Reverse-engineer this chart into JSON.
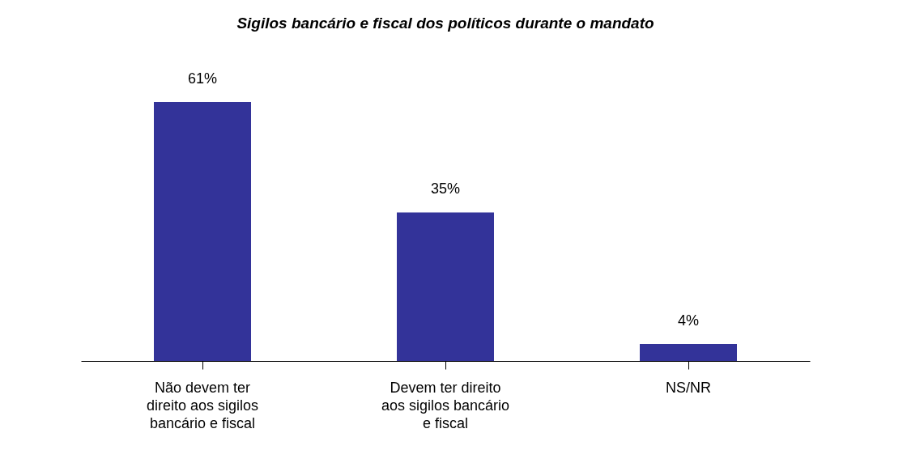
{
  "chart_data": {
    "type": "bar",
    "title": "Sigilos bancário e fiscal dos políticos durante o mandato",
    "categories": [
      "Não devem ter direito aos sigilos bancário e fiscal",
      "Devem ter direito aos sigilos bancário e fiscal",
      "NS/NR"
    ],
    "values": [
      61,
      35,
      4
    ],
    "color": "#333399",
    "value_labels": [
      "61%",
      "35%",
      "4%"
    ]
  }
}
